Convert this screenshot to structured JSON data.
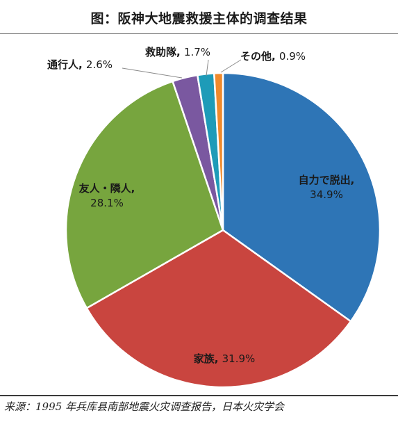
{
  "title": "图：阪神大地震救援主体的调查结果",
  "source": "来源：1995 年兵库县南部地震火灾调查报告，日本火灾学会",
  "chart_data": {
    "type": "pie",
    "title": "图：阪神大地震救援主体的调查结果",
    "slices": [
      {
        "label": "自力で脱出",
        "value": 34.9,
        "display": "34.9%",
        "color": "#2E75B6"
      },
      {
        "label": "家族",
        "value": 31.9,
        "display": "31.9%",
        "color": "#C9453F"
      },
      {
        "label": "友人・隣人",
        "value": 28.1,
        "display": "28.1%",
        "color": "#77A53E"
      },
      {
        "label": "通行人",
        "value": 2.6,
        "display": "2.6%",
        "color": "#7A58A0"
      },
      {
        "label": "救助隊",
        "value": 1.7,
        "display": "1.7%",
        "color": "#1E9BB8"
      },
      {
        "label": "その他",
        "value": 0.9,
        "display": "0.9%",
        "color": "#F08A2C"
      }
    ],
    "legend": "none"
  }
}
